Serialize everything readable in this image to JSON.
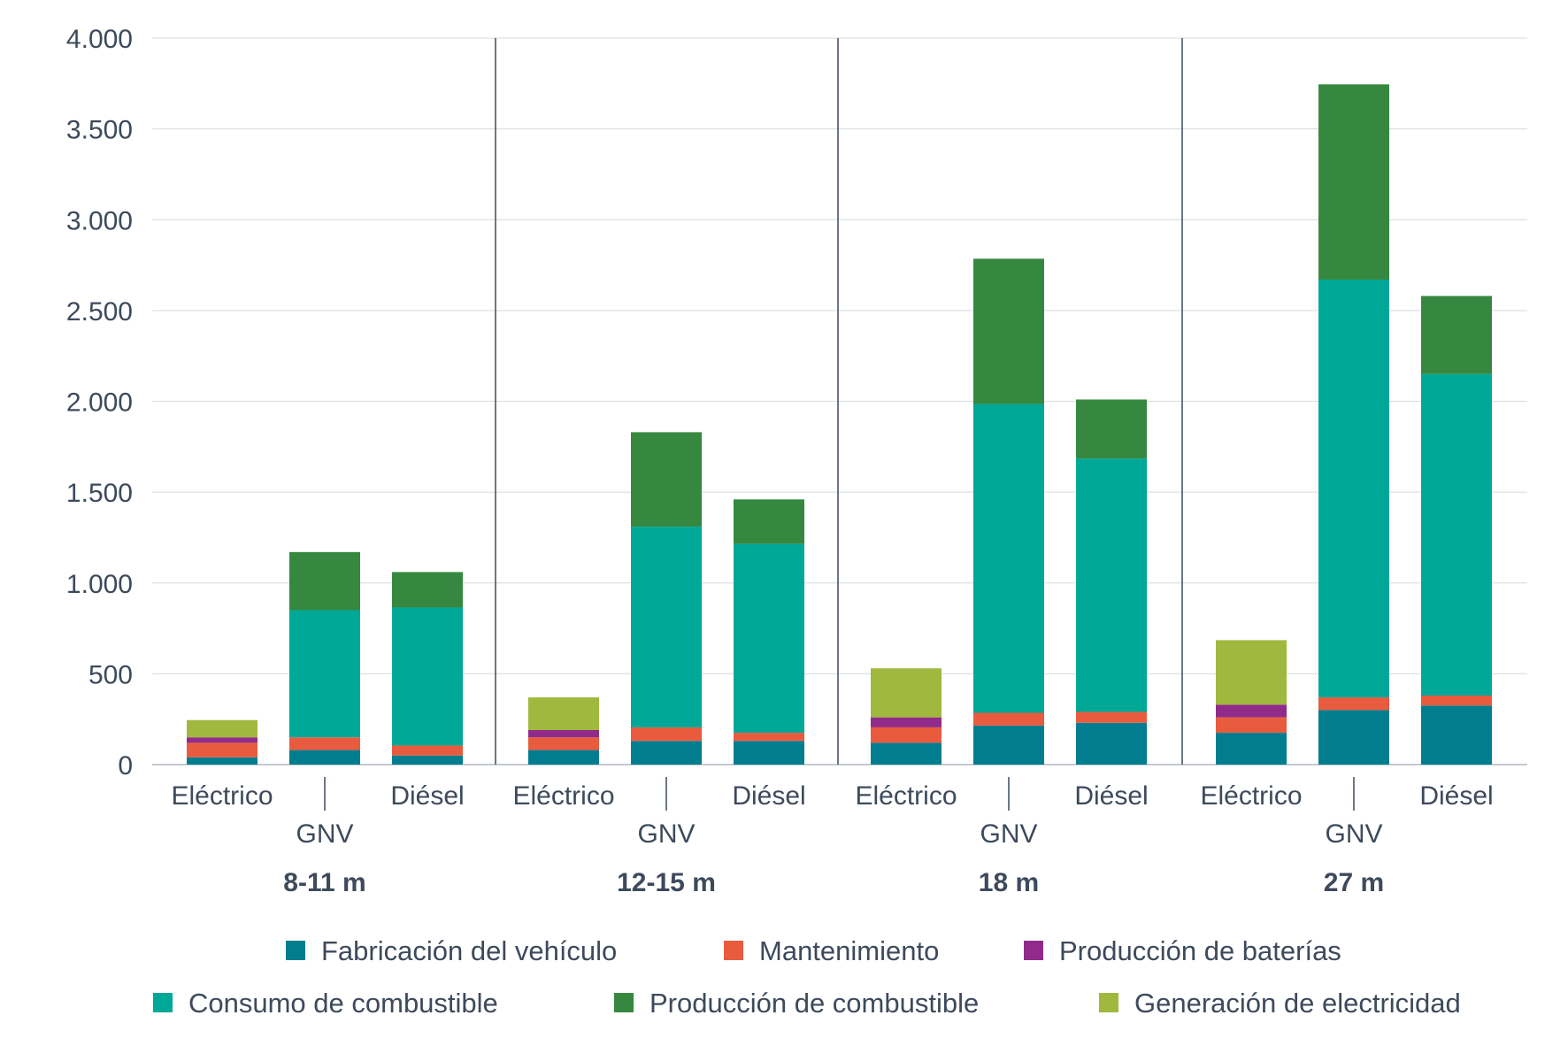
{
  "chart_data": {
    "type": "bar",
    "stacked": true,
    "ylim": [
      0,
      4000
    ],
    "yticks": [
      0,
      500,
      1000,
      1500,
      2000,
      2500,
      3000,
      3500,
      4000
    ],
    "ytick_labels": [
      "0",
      "500",
      "1.000",
      "1.500",
      "2.000",
      "2.500",
      "3.000",
      "3.500",
      "4.000"
    ],
    "grid": true,
    "legend_position": "bottom",
    "groups": [
      {
        "label": "8-11 m",
        "bars": [
          "Eléctrico",
          "GNV",
          "Diésel"
        ]
      },
      {
        "label": "12-15 m",
        "bars": [
          "Eléctrico",
          "GNV",
          "Diésel"
        ]
      },
      {
        "label": "18 m",
        "bars": [
          "Eléctrico",
          "GNV",
          "Diésel"
        ]
      },
      {
        "label": "27 m",
        "bars": [
          "Eléctrico",
          "GNV",
          "Diésel"
        ]
      }
    ],
    "series": [
      {
        "name": "Fabricación del vehículo",
        "color": "#007d8f",
        "values": [
          [
            40,
            80,
            50
          ],
          [
            80,
            130,
            130
          ],
          [
            120,
            215,
            230
          ],
          [
            175,
            300,
            325
          ]
        ]
      },
      {
        "name": "Mantenimiento",
        "color": "#e85b3e",
        "values": [
          [
            80,
            70,
            55
          ],
          [
            70,
            75,
            45
          ],
          [
            85,
            70,
            60
          ],
          [
            85,
            70,
            55
          ]
        ]
      },
      {
        "name": "Producción de baterías",
        "color": "#912b8a",
        "values": [
          [
            30,
            0,
            0
          ],
          [
            40,
            0,
            0
          ],
          [
            55,
            0,
            0
          ],
          [
            70,
            0,
            0
          ]
        ]
      },
      {
        "name": "Consumo de combustible",
        "color": "#00a897",
        "values": [
          [
            0,
            700,
            760
          ],
          [
            0,
            1105,
            1040
          ],
          [
            0,
            1700,
            1395
          ],
          [
            0,
            2300,
            1770
          ]
        ]
      },
      {
        "name": "Producción de combustible",
        "color": "#368840",
        "values": [
          [
            0,
            320,
            195
          ],
          [
            0,
            520,
            245
          ],
          [
            0,
            800,
            325
          ],
          [
            0,
            1075,
            430
          ]
        ]
      },
      {
        "name": "Generación de electricidad",
        "color": "#a0b83e",
        "values": [
          [
            95,
            0,
            0
          ],
          [
            180,
            0,
            0
          ],
          [
            270,
            0,
            0
          ],
          [
            355,
            0,
            0
          ]
        ]
      }
    ]
  }
}
